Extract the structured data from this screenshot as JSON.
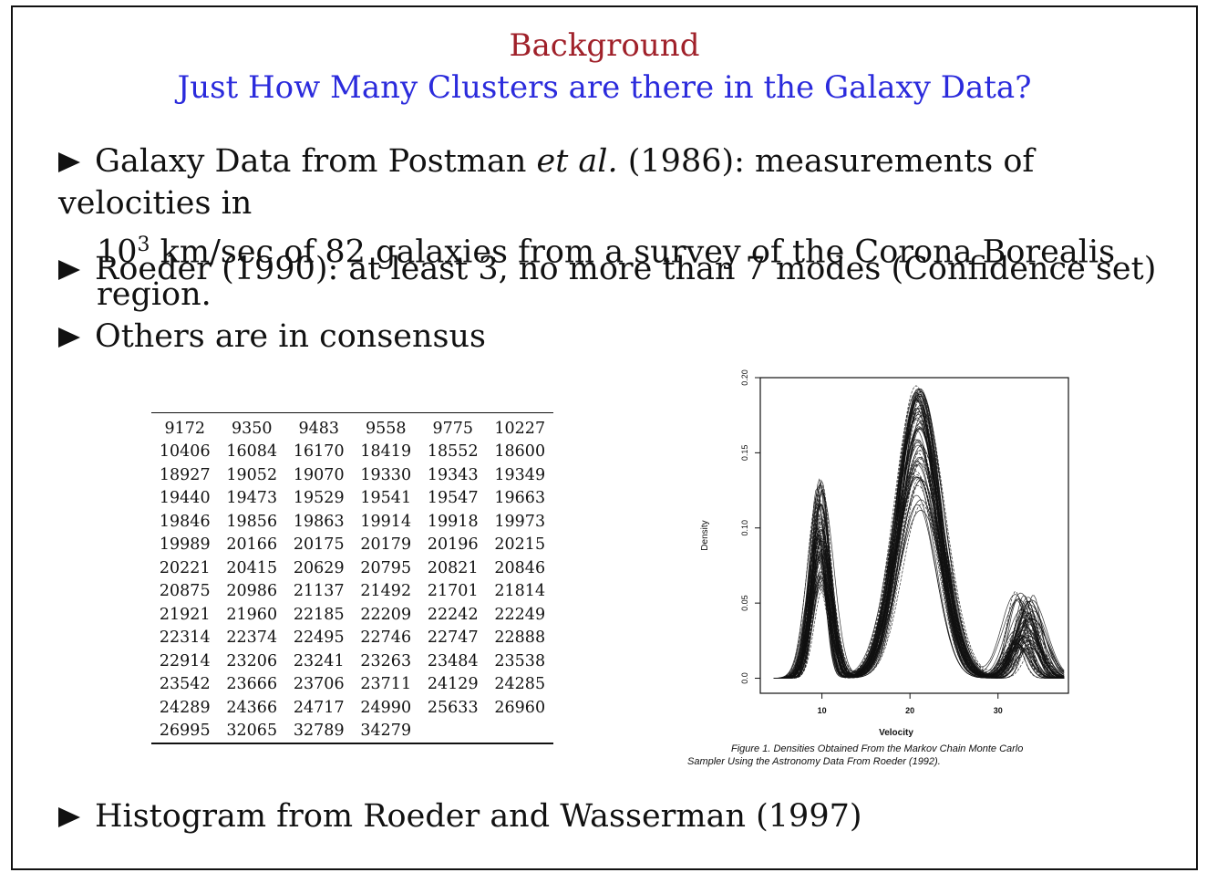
{
  "slide": {
    "title": "Background",
    "subtitle": "Just How Many Clusters are there in the Galaxy Data?",
    "bullets": {
      "b1_pre": "Galaxy Data from Postman ",
      "b1_em": "et al.",
      "b1_post": " (1986): measurements of velocities in",
      "b1_line2_pre": "10",
      "b1_line2_sup": "3",
      "b1_line2_post": " km/sec of 82 galaxies from a survey of the Corona Borealis region.",
      "b2": "Roeder (1990): at least 3, no more than 7 modes (Confidence set)",
      "b3": "Others are in consensus",
      "b4": "Histogram from Roeder and Wasserman (1997)"
    }
  },
  "galaxy_table": [
    [
      "9172",
      "9350",
      "9483",
      "9558",
      "9775",
      "10227"
    ],
    [
      "10406",
      "16084",
      "16170",
      "18419",
      "18552",
      "18600"
    ],
    [
      "18927",
      "19052",
      "19070",
      "19330",
      "19343",
      "19349"
    ],
    [
      "19440",
      "19473",
      "19529",
      "19541",
      "19547",
      "19663"
    ],
    [
      "19846",
      "19856",
      "19863",
      "19914",
      "19918",
      "19973"
    ],
    [
      "19989",
      "20166",
      "20175",
      "20179",
      "20196",
      "20215"
    ],
    [
      "20221",
      "20415",
      "20629",
      "20795",
      "20821",
      "20846"
    ],
    [
      "20875",
      "20986",
      "21137",
      "21492",
      "21701",
      "21814"
    ],
    [
      "21921",
      "21960",
      "22185",
      "22209",
      "22242",
      "22249"
    ],
    [
      "22314",
      "22374",
      "22495",
      "22746",
      "22747",
      "22888"
    ],
    [
      "22914",
      "23206",
      "23241",
      "23263",
      "23484",
      "23538"
    ],
    [
      "23542",
      "23666",
      "23706",
      "23711",
      "24129",
      "24285"
    ],
    [
      "24289",
      "24366",
      "24717",
      "24990",
      "25633",
      "26960"
    ],
    [
      "26995",
      "32065",
      "32789",
      "34279",
      "",
      ""
    ]
  ],
  "chart_data": {
    "type": "line",
    "xlabel": "Velocity",
    "ylabel": "Density",
    "xlim": [
      3,
      38
    ],
    "ylim": [
      -0.01,
      0.2
    ],
    "x_ticks": [
      "10",
      "20",
      "30"
    ],
    "x_tick_values": [
      10,
      20,
      30
    ],
    "y_ticks": [
      "0.0",
      "0.05",
      "0.10",
      "0.15",
      "0.20"
    ],
    "y_tick_values": [
      0.0,
      0.05,
      0.1,
      0.15,
      0.2
    ],
    "description_of_series": "many overlapping density curves sampled from MCMC",
    "modes": [
      {
        "center": 9.8,
        "peak_min": 0.06,
        "peak_max": 0.135
      },
      {
        "center": 21.0,
        "peak_min": 0.11,
        "peak_max": 0.195
      },
      {
        "center": 33.0,
        "peak_min": 0.02,
        "peak_max": 0.058
      }
    ],
    "caption_line1": "Figure 1.   Densities Obtained From the Markov Chain Monte Carlo",
    "caption_line2": "Sampler Using the Astronomy Data From Roeder (1992)."
  },
  "colors": {
    "title": "#a0212a",
    "subtitle": "#2b2bdc",
    "text": "#111111"
  }
}
